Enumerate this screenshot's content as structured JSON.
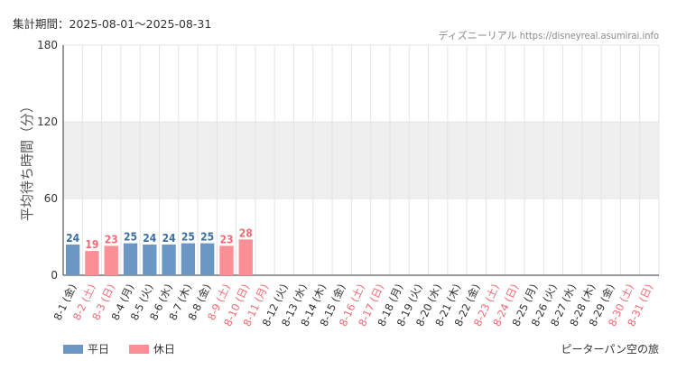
{
  "header": {
    "period": "集計期間：2025-08-01～2025-08-31",
    "credit": "ディズニーリアル https://disneyreal.asumirai.info"
  },
  "footer": {
    "attraction": "ピーターパン空の旅"
  },
  "colors": {
    "weekday": "#6b97c4",
    "holiday": "#fa8f96",
    "weekday_text": "#3d6fa3",
    "holiday_text": "#f26a74",
    "band": "#efefef",
    "grid": "#e4e4e4",
    "axis": "#333333"
  },
  "chart_data": {
    "type": "bar",
    "ylabel": "平均待ち時間（分）",
    "ylim": [
      0,
      180
    ],
    "yticks": [
      0,
      60,
      120,
      180
    ],
    "legend": [
      {
        "key": "weekday",
        "label": "平日"
      },
      {
        "key": "holiday",
        "label": "休日"
      }
    ],
    "categories": [
      "8-1 (金)",
      "8-2 (土)",
      "8-3 (日)",
      "8-4 (月)",
      "8-5 (火)",
      "8-6 (水)",
      "8-7 (木)",
      "8-8 (金)",
      "8-9 (土)",
      "8-10 (日)",
      "8-11 (月)",
      "8-12 (火)",
      "8-13 (水)",
      "8-14 (木)",
      "8-15 (金)",
      "8-16 (土)",
      "8-17 (日)",
      "8-18 (月)",
      "8-19 (火)",
      "8-20 (水)",
      "8-21 (木)",
      "8-22 (金)",
      "8-23 (土)",
      "8-24 (日)",
      "8-25 (月)",
      "8-26 (火)",
      "8-27 (水)",
      "8-28 (木)",
      "8-29 (金)",
      "8-30 (土)",
      "8-31 (日)"
    ],
    "day_type": [
      "weekday",
      "holiday",
      "holiday",
      "weekday",
      "weekday",
      "weekday",
      "weekday",
      "weekday",
      "holiday",
      "holiday",
      "holiday",
      "weekday",
      "weekday",
      "weekday",
      "weekday",
      "holiday",
      "holiday",
      "weekday",
      "weekday",
      "weekday",
      "weekday",
      "weekday",
      "holiday",
      "holiday",
      "weekday",
      "weekday",
      "weekday",
      "weekday",
      "weekday",
      "holiday",
      "holiday"
    ],
    "values": [
      24,
      19,
      23,
      25,
      24,
      24,
      25,
      25,
      23,
      28,
      null,
      null,
      null,
      null,
      null,
      null,
      null,
      null,
      null,
      null,
      null,
      null,
      null,
      null,
      null,
      null,
      null,
      null,
      null,
      null,
      null
    ]
  }
}
